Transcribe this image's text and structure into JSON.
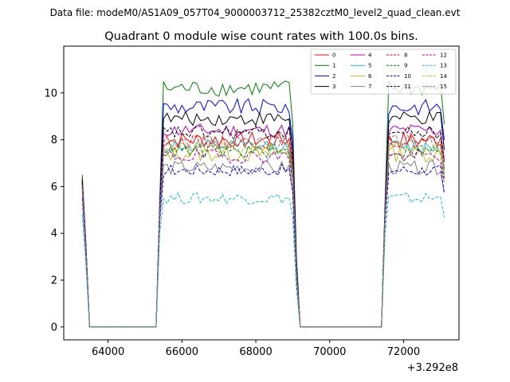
{
  "suptitle": "Data file: modeM0/AS1A09_057T04_9000003712_25382cztM0_level2_quad_clean.evt",
  "chart_data": {
    "type": "line",
    "title": "Quadrant 0 module wise count rates with 100.0s bins.",
    "xlabel": "",
    "ylabel": "",
    "x_offset_label": "+3.292e8",
    "xlim": [
      62800,
      73500
    ],
    "ylim": [
      -0.55,
      12.0
    ],
    "xticks": [
      64000,
      66000,
      68000,
      70000,
      72000
    ],
    "xtick_labels": [
      "64000",
      "66000",
      "68000",
      "70000",
      "72000"
    ],
    "yticks": [
      0,
      2,
      4,
      6,
      8,
      10
    ],
    "ytick_labels": [
      "0",
      "2",
      "4",
      "6",
      "8",
      "10"
    ],
    "grid": false,
    "legend_placement": "upper right",
    "segments": [
      {
        "start": 63300,
        "end": 63400,
        "shape": "decay"
      },
      {
        "start": 63500,
        "end": 65300,
        "shape": "zero"
      },
      {
        "start": 65400,
        "end": 69000,
        "shape": "plateau"
      },
      {
        "start": 69100,
        "end": 69200,
        "shape": "decay"
      },
      {
        "start": 69300,
        "end": 71400,
        "shape": "zero"
      },
      {
        "start": 71500,
        "end": 73100,
        "shape": "plateau"
      }
    ],
    "series": [
      {
        "name": "0",
        "color": "#ff0000",
        "dash": false,
        "start": 6.4,
        "rise": 5.0,
        "level": 8.0,
        "noise": 0.35
      },
      {
        "name": "1",
        "color": "#008000",
        "dash": false,
        "start": 6.5,
        "rise": 5.5,
        "level": 10.2,
        "noise": 0.35
      },
      {
        "name": "2",
        "color": "#0000ff",
        "dash": false,
        "start": 6.3,
        "rise": 5.2,
        "level": 9.4,
        "noise": 0.35
      },
      {
        "name": "3",
        "color": "#000000",
        "dash": false,
        "start": 6.3,
        "rise": 5.0,
        "level": 8.9,
        "noise": 0.3
      },
      {
        "name": "4",
        "color": "#bf00bf",
        "dash": false,
        "start": 6.2,
        "rise": 5.0,
        "level": 8.4,
        "noise": 0.3
      },
      {
        "name": "5",
        "color": "#17becf",
        "dash": false,
        "start": 6.0,
        "rise": 4.8,
        "level": 7.7,
        "noise": 0.3
      },
      {
        "name": "6",
        "color": "#bcbd22",
        "dash": false,
        "start": 5.8,
        "rise": 4.8,
        "level": 7.4,
        "noise": 0.35
      },
      {
        "name": "7",
        "color": "#7f7f7f",
        "dash": false,
        "start": 5.7,
        "rise": 4.7,
        "level": 6.8,
        "noise": 0.3
      },
      {
        "name": "8",
        "color": "#ff0000",
        "dash": true,
        "start": 6.2,
        "rise": 5.0,
        "level": 7.9,
        "noise": 0.3
      },
      {
        "name": "9",
        "color": "#008000",
        "dash": true,
        "start": 6.1,
        "rise": 4.9,
        "level": 7.5,
        "noise": 0.3
      },
      {
        "name": "10",
        "color": "#0000ff",
        "dash": true,
        "start": 5.5,
        "rise": 4.5,
        "level": 6.7,
        "noise": 0.25
      },
      {
        "name": "11",
        "color": "#000000",
        "dash": true,
        "start": 6.2,
        "rise": 5.0,
        "level": 8.3,
        "noise": 0.3
      },
      {
        "name": "12",
        "color": "#bf00bf",
        "dash": true,
        "start": 6.0,
        "rise": 4.9,
        "level": 7.3,
        "noise": 0.3
      },
      {
        "name": "13",
        "color": "#17becf",
        "dash": true,
        "start": 4.8,
        "rise": 4.0,
        "level": 5.5,
        "noise": 0.25
      },
      {
        "name": "14",
        "color": "#bcbd22",
        "dash": true,
        "start": 5.9,
        "rise": 4.8,
        "level": 7.6,
        "noise": 0.3
      },
      {
        "name": "15",
        "color": "#7f7f7f",
        "dash": true,
        "start": 5.9,
        "rise": 4.8,
        "level": 7.9,
        "noise": 0.3
      }
    ]
  }
}
